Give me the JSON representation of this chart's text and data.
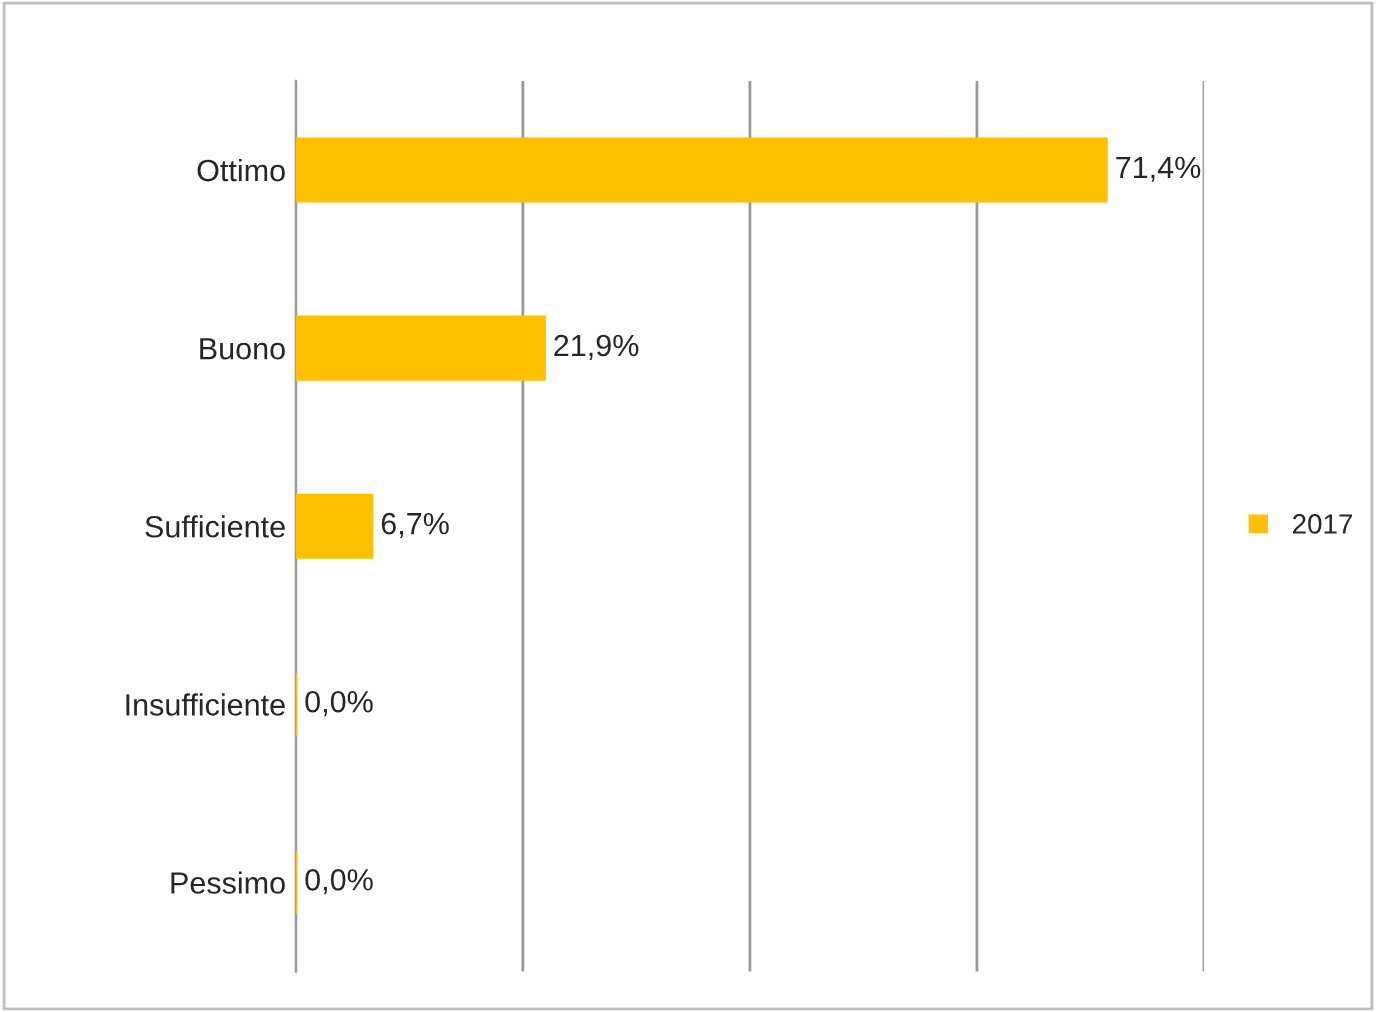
{
  "chart_data": {
    "type": "bar",
    "orientation": "horizontal",
    "categories": [
      "Ottimo",
      "Buono",
      "Sufficiente",
      "Insufficiente",
      "Pessimo"
    ],
    "series": [
      {
        "name": "2017",
        "color": "#ffc000",
        "values": [
          71.4,
          21.9,
          6.7,
          0.0,
          0.0
        ],
        "value_labels": [
          "71,4%",
          "21,9%",
          "6,7%",
          "0,0%",
          "0,0%"
        ]
      }
    ],
    "xlim": [
      0,
      80
    ],
    "xticks": [
      {
        "value": 0,
        "label": null
      },
      {
        "value": 20,
        "label": null
      },
      {
        "value": 40,
        "label": null
      },
      {
        "value": 60,
        "label": null
      },
      {
        "value": 80,
        "label": null
      }
    ],
    "tick_labels": "y",
    "grid": "x",
    "legend": "right"
  }
}
